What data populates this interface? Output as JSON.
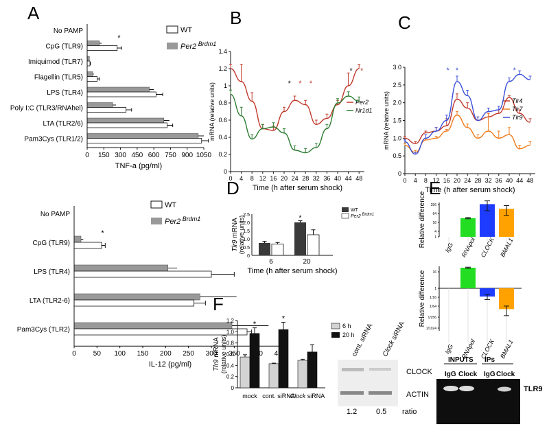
{
  "panel_labels": {
    "A": "A",
    "B": "B",
    "C": "C",
    "D": "D",
    "E": "E",
    "F": "F"
  },
  "colors": {
    "grey": "#999999",
    "red": "#c0392b",
    "green": "#2e7d32",
    "blue": "#3a4fd8",
    "orange": "#f07a1a",
    "black": "#111111",
    "dark": "#3a3a3a",
    "lime": "#22dd22",
    "clock_blue": "#1e3cff",
    "bmal_orange": "#ffa200"
  },
  "chart_data": [
    {
      "id": "A1",
      "type": "bar",
      "orientation": "horizontal",
      "categories": [
        "No PAMP",
        "CpG (TLR9)",
        "Imiquimod (TLR7)",
        "Flagellin (TLR5)",
        "LPS (TLR4)",
        "Poly I:C (TLR3/RNAhel)",
        "LTA (TLR2/6)",
        "Pam3Cys (TLR1/2)"
      ],
      "series": [
        {
          "name": "Per2 Brdm1",
          "values": [
            0,
            110,
            20,
            50,
            560,
            230,
            690,
            1000
          ],
          "errors": [
            0,
            20,
            0,
            10,
            40,
            30,
            50,
            50
          ]
        },
        {
          "name": "WT",
          "values": [
            0,
            270,
            25,
            90,
            620,
            350,
            720,
            1030
          ],
          "errors": [
            0,
            40,
            5,
            20,
            60,
            50,
            50,
            60
          ]
        }
      ],
      "stars": [
        "CpG (TLR9)"
      ],
      "xlabel": "TNF-a (pg/ml)",
      "xlim": [
        0,
        1050
      ],
      "xticks": [
        "0",
        "150",
        "300",
        "450",
        "600",
        "750",
        "900",
        "1050"
      ],
      "legend": {
        "wt": "WT",
        "per2": "Per2",
        "brdm1": "Brdm1"
      }
    },
    {
      "id": "A2",
      "type": "bar",
      "orientation": "horizontal",
      "categories": [
        "No PAMP",
        "CpG (TLR9)",
        "LPS (TLR4)",
        "LTA (TLR2-6)",
        "Pam3Cys (TLR2)"
      ],
      "series": [
        {
          "name": "Per2 Brdm1",
          "values": [
            0,
            15,
            205,
            275,
            345
          ],
          "errors": [
            0,
            5,
            20,
            80,
            80
          ]
        },
        {
          "name": "WT",
          "values": [
            0,
            60,
            300,
            262,
            378
          ],
          "errors": [
            0,
            8,
            50,
            25,
            10
          ]
        }
      ],
      "stars": [
        "CpG (TLR9)"
      ],
      "xlabel": "IL-12 (pg/ml)",
      "xlim": [
        0,
        450
      ],
      "xticks": [
        "0",
        "50",
        "100",
        "150",
        "200",
        "250",
        "300",
        "350",
        "400",
        "450"
      ],
      "legend": {
        "wt": "WT",
        "per2": "Per2",
        "brdm1": "Brdm1"
      }
    },
    {
      "id": "B",
      "type": "line",
      "series": [
        {
          "name": "Per2",
          "x": [
            0,
            4,
            8,
            12,
            16,
            20,
            24,
            28,
            32,
            36,
            40,
            44,
            48
          ],
          "values": [
            1.2,
            1.05,
            0.82,
            0.5,
            0.48,
            0.7,
            0.83,
            0.78,
            0.55,
            0.62,
            0.78,
            1.0,
            1.2
          ],
          "errors": [
            0.05,
            0.2,
            0.1,
            0.05,
            0.05,
            0.05,
            0.05,
            0.05,
            0.05,
            0.05,
            0.05,
            0.15,
            0.05
          ]
        },
        {
          "name": "Nr1d1",
          "x": [
            0,
            4,
            8,
            12,
            16,
            20,
            24,
            28,
            32,
            36,
            40,
            44,
            48
          ],
          "values": [
            0.9,
            0.65,
            0.38,
            0.5,
            0.52,
            0.45,
            0.25,
            0.22,
            0.28,
            0.5,
            0.8,
            0.88,
            0.82
          ],
          "errors": [
            0.05,
            0.1,
            0.05,
            0.05,
            0.05,
            0.05,
            0.05,
            0.05,
            0.05,
            0.05,
            0.05,
            0.05,
            0.05
          ]
        }
      ],
      "xlabel": "Time (h after serum shock)",
      "ylabel": "mRNA (relative units)",
      "xlim": [
        0,
        50
      ],
      "ylim": [
        0,
        1.4
      ],
      "xticks": [
        "0",
        "4",
        "8",
        "12",
        "16",
        "20",
        "24",
        "28",
        "32",
        "36",
        "40",
        "44",
        "48"
      ],
      "yticks": [
        "0",
        "0.2",
        "0.4",
        "0.6",
        "0.8",
        "1",
        "1.2",
        "1.4"
      ],
      "stars": [
        {
          "x": 22,
          "y": 1.0,
          "color": "black"
        },
        {
          "x": 26,
          "y": 1.0,
          "color": "red"
        },
        {
          "x": 30,
          "y": 1.0,
          "color": "red"
        },
        {
          "x": 45,
          "y": 1.15,
          "color": "black"
        },
        {
          "x": 49,
          "y": 1.15,
          "color": "red"
        }
      ]
    },
    {
      "id": "C",
      "type": "line",
      "series": [
        {
          "name": "Tlr4",
          "x": [
            0,
            4,
            8,
            12,
            16,
            20,
            24,
            28,
            32,
            36,
            40,
            44,
            48
          ],
          "values": [
            1.0,
            0.85,
            1.15,
            1.2,
            1.35,
            2.1,
            1.85,
            1.5,
            1.6,
            1.7,
            2.15,
            1.7,
            1.45
          ],
          "errors": [
            0.05,
            0.05,
            0.05,
            0.1,
            0.2,
            0.15,
            0.15,
            0.1,
            0.1,
            0.1,
            0.05,
            0.1,
            0.1
          ]
        },
        {
          "name": "Tlr7",
          "x": [
            0,
            4,
            8,
            12,
            16,
            20,
            24,
            28,
            32,
            36,
            40,
            44,
            48
          ],
          "values": [
            0.8,
            0.6,
            0.95,
            1.0,
            1.2,
            1.65,
            1.3,
            1.0,
            1.2,
            1.0,
            1.1,
            0.7,
            0.8
          ],
          "errors": [
            0.05,
            0.05,
            0.05,
            0.05,
            0.05,
            0.1,
            0.1,
            0.1,
            0.5,
            0.2,
            0.2,
            0.1,
            0.1
          ]
        },
        {
          "name": "Tlr9",
          "x": [
            0,
            4,
            8,
            12,
            16,
            20,
            24,
            28,
            32,
            36,
            40,
            44,
            48
          ],
          "values": [
            0.9,
            0.55,
            1.0,
            1.2,
            1.5,
            2.6,
            2.2,
            1.5,
            1.75,
            1.8,
            2.6,
            2.8,
            2.65
          ],
          "errors": [
            0.05,
            0.05,
            0.1,
            0.1,
            0.15,
            0.15,
            0.15,
            0.1,
            0.1,
            0.1,
            0.1,
            0.1,
            0.1
          ]
        }
      ],
      "xlabel": "Time (h after serum shock)",
      "ylabel": "mRNA (relative units)",
      "xlim": [
        0,
        50
      ],
      "ylim": [
        0,
        3.0
      ],
      "xticks": [
        "0",
        "4",
        "8",
        "12",
        "16",
        "20",
        "24",
        "28",
        "32",
        "36",
        "40",
        "44",
        "48"
      ],
      "yticks": [
        "0",
        "0.5",
        "1.0",
        "1.5",
        "2.0",
        "2.5",
        "3.0"
      ],
      "stars": [
        {
          "x": 16.5,
          "y": 2.85,
          "color": "blue"
        },
        {
          "x": 20,
          "y": 2.85,
          "color": "blue"
        },
        {
          "x": 42,
          "y": 2.85,
          "color": "blue"
        }
      ]
    },
    {
      "id": "D",
      "type": "bar",
      "categories": [
        "6",
        "20"
      ],
      "series": [
        {
          "name": "WT",
          "values": [
            0.75,
            2.0
          ],
          "errors": [
            0.1,
            0.1
          ]
        },
        {
          "name": "Per2 Brdm1",
          "values": [
            0.68,
            1.25
          ],
          "errors": [
            0.1,
            0.3
          ]
        }
      ],
      "xlabel": "Time (h after serum shock)",
      "ylabel_main": "Tlr9",
      "ylabel_rest": " mRNA",
      "ylabel2": "(relative units)",
      "ylim": [
        0,
        2.5
      ],
      "yticks": [
        "0",
        "0.5",
        "1.0",
        "1.5",
        "2.0",
        "2.5"
      ],
      "stars": [
        "20"
      ],
      "legend": {
        "wt": "WT",
        "per2": "Per2",
        "brdm1": "Brdm1"
      }
    },
    {
      "id": "E1",
      "type": "bar",
      "scale": "log",
      "categories": [
        "IgG",
        "RNApol",
        "CLOCK",
        "BMAL1"
      ],
      "series": [
        {
          "name": "",
          "values": [
            1,
            16,
            128,
            64
          ],
          "errors": [
            1,
            1.5,
            80,
            40
          ]
        }
      ],
      "ylabel": "Relative difference",
      "yticks": [
        "1",
        "4",
        "16",
        "64",
        "256"
      ]
    },
    {
      "id": "E2",
      "type": "bar",
      "scale": "log",
      "categories": [
        "IgG",
        "RNApol",
        "CLOCK",
        "BMAL1"
      ],
      "series": [
        {
          "name": "",
          "values": [
            1,
            32,
            0.25,
            0.03
          ],
          "errors": [
            1,
            3,
            0.1,
            0.02
          ]
        }
      ],
      "ylabel": "Relative difference",
      "yticks": [
        "16",
        "1",
        "1/16",
        "1/64",
        "1/256",
        "1/1024"
      ]
    },
    {
      "id": "F",
      "type": "bar",
      "categories": [
        "mock",
        "cont. siRNA",
        "Clock siRNA"
      ],
      "series": [
        {
          "name": "6 h",
          "values": [
            0.55,
            0.43,
            0.49
          ],
          "errors": [
            0.04,
            0.01,
            0.02
          ]
        },
        {
          "name": "20 h",
          "values": [
            0.97,
            1.04,
            0.64
          ],
          "errors": [
            0.1,
            0.13,
            0.13
          ]
        }
      ],
      "ylabel_main": "Tlr9",
      "ylabel_rest": " mRNA",
      "ylabel2": "(relative units)",
      "ylim": [
        0,
        1.2
      ],
      "yticks": [
        "0",
        "0.2",
        "0.4",
        "0.6",
        "0.8",
        "1.0",
        "1.2"
      ],
      "stars": [
        "mock",
        "cont. siRNA"
      ],
      "legend": [
        "6 h",
        "20 h"
      ]
    }
  ],
  "blot_F": {
    "col1": "cont. siRNA",
    "col2_main": "Clock",
    "col2_rest": " siRNA",
    "bands": [
      "CLOCK",
      "ACTIN"
    ],
    "ratios": [
      "1.2",
      "0.5"
    ],
    "ratio_label": "ratio"
  },
  "blot_E": {
    "inputs": "INPUTS",
    "ips": "IPs",
    "lanes": [
      "IgG",
      "Clock",
      "IgG",
      "Clock"
    ],
    "band": "TLR9"
  }
}
